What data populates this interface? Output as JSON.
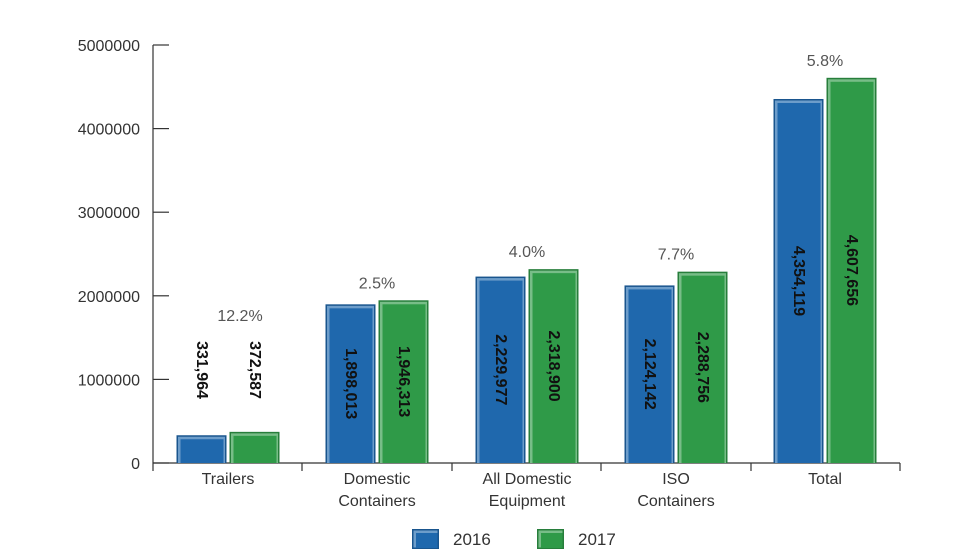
{
  "chart_data": {
    "type": "bar",
    "title": "",
    "xlabel": "",
    "ylabel": "",
    "ylim": [
      0,
      5000000
    ],
    "yticks": [
      "0",
      "1000000",
      "2000000",
      "3000000",
      "4000000",
      "5000000"
    ],
    "categories": [
      [
        "Trailers"
      ],
      [
        "Domestic",
        "Containers"
      ],
      [
        "All Domestic",
        "Equipment"
      ],
      [
        "ISO",
        "Containers"
      ],
      [
        "Total"
      ]
    ],
    "series": [
      {
        "name": "2016",
        "color": "#1f68ad",
        "values": [
          331964,
          1898013,
          2229977,
          2124142,
          4354119
        ],
        "labels": [
          "331,964",
          "1,898,013",
          "2,229,977",
          "2,124,142",
          "4,354,119"
        ]
      },
      {
        "name": "2017",
        "color": "#2f9a48",
        "values": [
          372587,
          1946313,
          2318900,
          2288756,
          4607656
        ],
        "labels": [
          "372,587",
          "1,946,313",
          "2,318,900",
          "2,288,756",
          "4,607,656"
        ]
      }
    ],
    "growth_labels": [
      "12.2%",
      "2.5%",
      "4.0%",
      "7.7%",
      "5.8%"
    ],
    "grid": false,
    "legend": "bottom-center"
  }
}
